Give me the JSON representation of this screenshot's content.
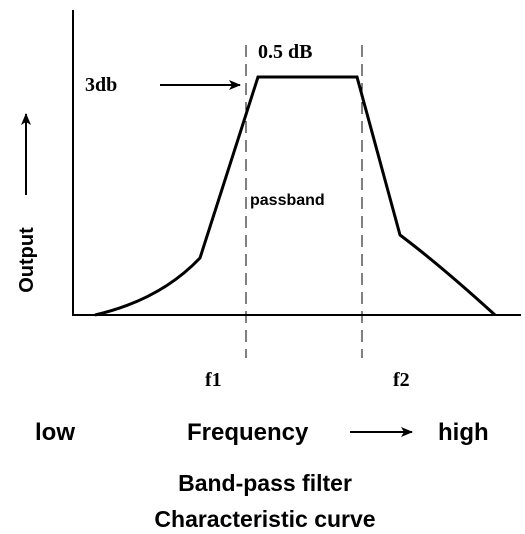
{
  "diagram": {
    "title": [
      "Band-pass filter",
      "Characteristic curve"
    ],
    "y_axis_label": "Output",
    "x_axis_label": "Frequency",
    "x_low": "low",
    "x_high": "high",
    "annotations": {
      "attenuation": "3db",
      "ripple": "0.5 dB",
      "band": "passband",
      "lower_cutoff": "f1",
      "upper_cutoff": "f2"
    }
  }
}
